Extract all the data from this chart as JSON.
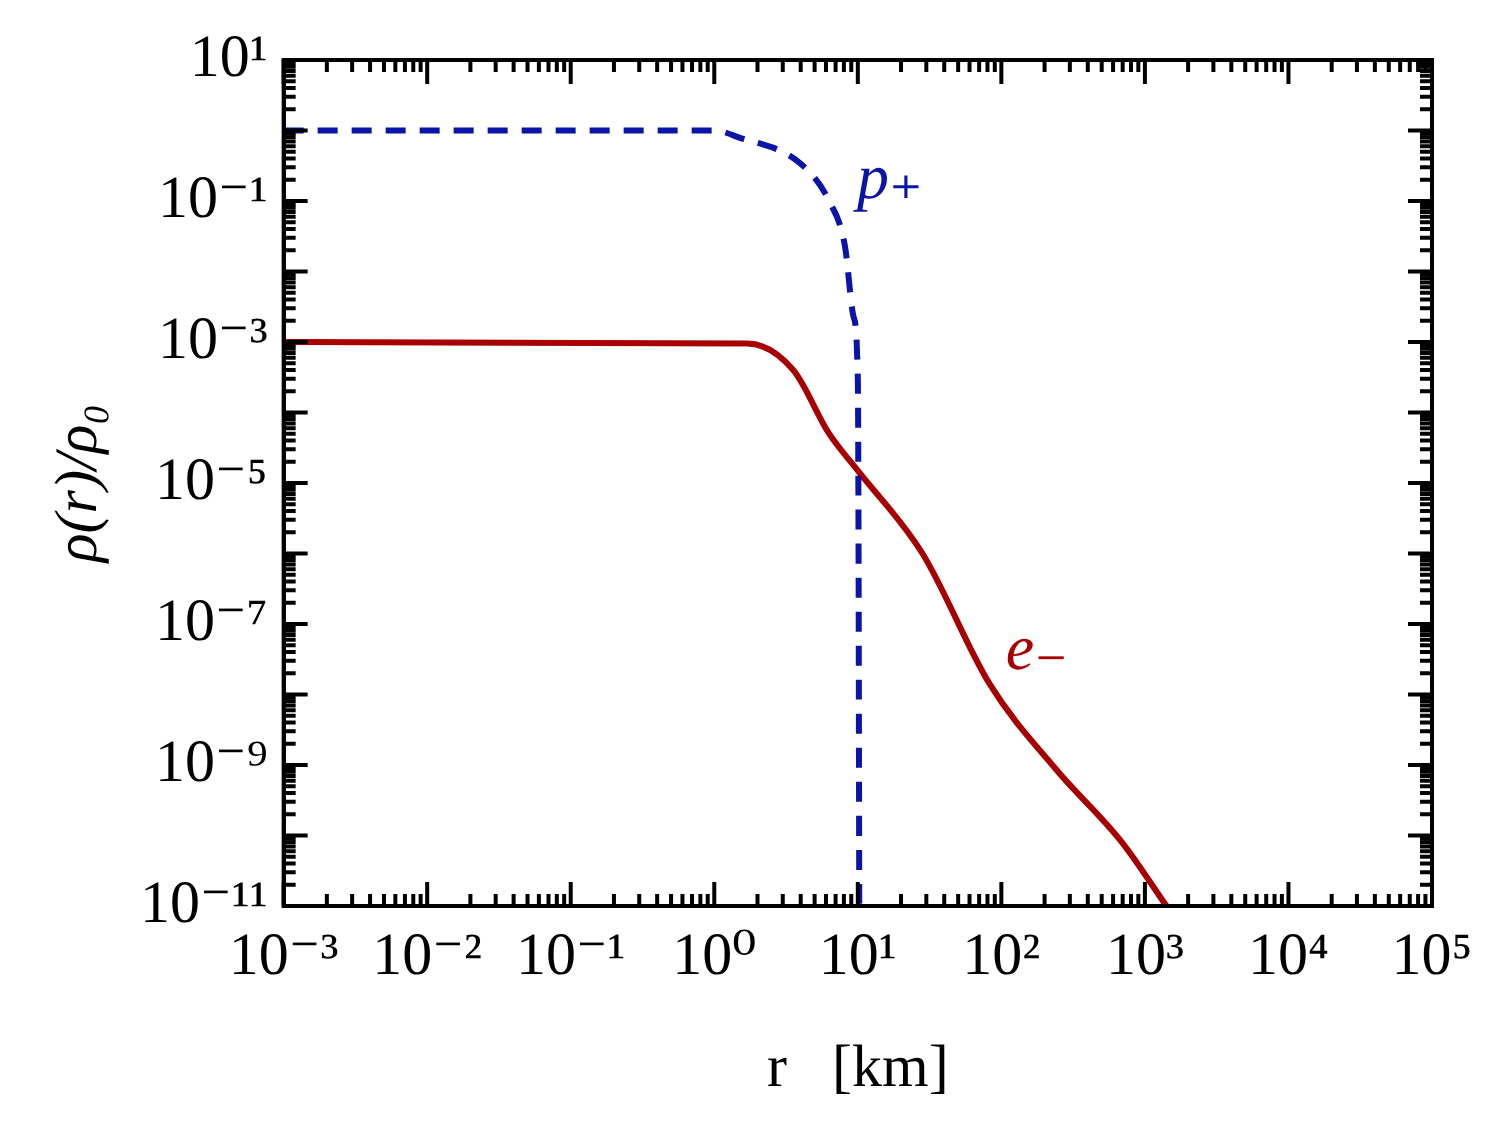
{
  "chart_data": {
    "type": "line",
    "log": "xy",
    "xlabel": "r   [km]",
    "ylabel": "ρ(r)/ρ₀",
    "grid": false,
    "legend": false,
    "marker": "none",
    "xlim": [
      0.001,
      100000
    ],
    "ylim": [
      1e-11,
      10
    ],
    "xticks": [
      {
        "value": 0.001,
        "label": "10⁻³"
      },
      {
        "value": 0.01,
        "label": "10⁻²"
      },
      {
        "value": 0.1,
        "label": "10⁻¹"
      },
      {
        "value": 1,
        "label": "10⁰"
      },
      {
        "value": 10,
        "label": "10¹"
      },
      {
        "value": 100,
        "label": "10²"
      },
      {
        "value": 1000,
        "label": "10³"
      },
      {
        "value": 10000,
        "label": "10⁴"
      },
      {
        "value": 100000,
        "label": "10⁵"
      }
    ],
    "yticks": [
      {
        "value": 1e-11,
        "label": "10⁻¹¹"
      },
      {
        "value": 1e-09,
        "label": "10⁻⁹"
      },
      {
        "value": 1e-07,
        "label": "10⁻⁷"
      },
      {
        "value": 1e-05,
        "label": "10⁻⁵"
      },
      {
        "value": 0.001,
        "label": "10⁻³"
      },
      {
        "value": 0.1,
        "label": "10⁻¹"
      },
      {
        "value": 10,
        "label": "10¹"
      }
    ],
    "series": [
      {
        "name": "p₊",
        "color": "#0a14a8",
        "line_style": "dashed",
        "x": [
          0.001,
          1,
          1.479,
          3.98,
          6.31,
          8.13,
          9.33,
          10,
          10.12,
          10.23
        ],
        "values": [
          1,
          1,
          0.8,
          0.34,
          0.1,
          0.023,
          0.0023,
          0.0003,
          1e-06,
          1e-11
        ]
      },
      {
        "name": "e₋",
        "color": "#a80000",
        "line_style": "solid",
        "x": [
          0.001,
          1.7,
          3.55,
          6.31,
          10,
          28.2,
          83,
          240,
          692,
          1413
        ],
        "values": [
          0.001,
          0.00095,
          0.0004,
          5e-05,
          1.5e-05,
          1e-06,
          1.4e-08,
          8.7e-10,
          8e-11,
          1e-11
        ]
      }
    ]
  }
}
